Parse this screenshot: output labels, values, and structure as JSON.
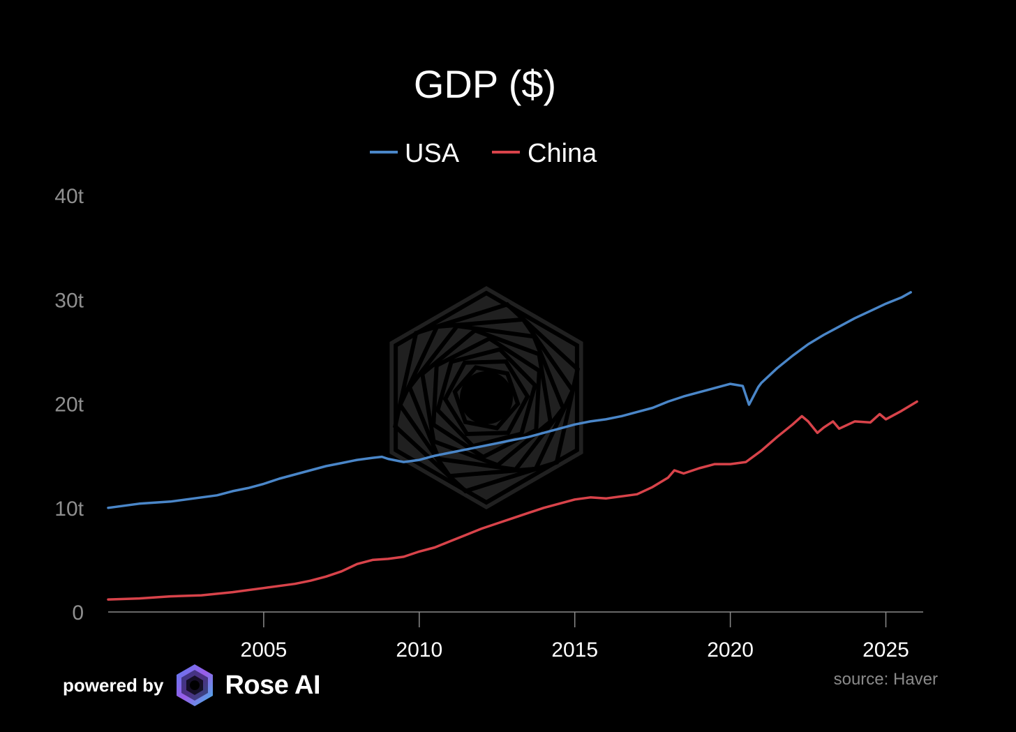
{
  "chart_data": {
    "type": "line",
    "title": "GDP ($)",
    "xlabel": "",
    "ylabel": "",
    "xlim": [
      2000.0,
      2026.2
    ],
    "ylim": [
      0,
      40
    ],
    "y_ticks": [
      0,
      10,
      20,
      30,
      40
    ],
    "y_tick_labels": [
      "0",
      "10t",
      "20t",
      "30t",
      "40t"
    ],
    "x_ticks": [
      2005,
      2010,
      2015,
      2020,
      2025
    ],
    "x_tick_labels": [
      "2005",
      "2010",
      "2015",
      "2020",
      "2025"
    ],
    "grid": false,
    "legend_position": "top-center",
    "series": [
      {
        "name": "USA",
        "color": "#4a86c8",
        "points": [
          [
            2000.0,
            10.0
          ],
          [
            2000.5,
            10.2
          ],
          [
            2001.0,
            10.4
          ],
          [
            2001.5,
            10.5
          ],
          [
            2002.0,
            10.6
          ],
          [
            2002.5,
            10.8
          ],
          [
            2003.0,
            11.0
          ],
          [
            2003.5,
            11.2
          ],
          [
            2004.0,
            11.6
          ],
          [
            2004.5,
            11.9
          ],
          [
            2005.0,
            12.3
          ],
          [
            2005.5,
            12.8
          ],
          [
            2006.0,
            13.2
          ],
          [
            2006.5,
            13.6
          ],
          [
            2007.0,
            14.0
          ],
          [
            2007.5,
            14.3
          ],
          [
            2008.0,
            14.6
          ],
          [
            2008.5,
            14.8
          ],
          [
            2008.8,
            14.9
          ],
          [
            2009.0,
            14.7
          ],
          [
            2009.5,
            14.4
          ],
          [
            2010.0,
            14.6
          ],
          [
            2010.5,
            15.0
          ],
          [
            2011.0,
            15.3
          ],
          [
            2011.5,
            15.6
          ],
          [
            2012.0,
            15.9
          ],
          [
            2012.5,
            16.2
          ],
          [
            2013.0,
            16.5
          ],
          [
            2013.5,
            16.8
          ],
          [
            2014.0,
            17.2
          ],
          [
            2014.5,
            17.6
          ],
          [
            2015.0,
            18.0
          ],
          [
            2015.5,
            18.3
          ],
          [
            2016.0,
            18.5
          ],
          [
            2016.5,
            18.8
          ],
          [
            2017.0,
            19.2
          ],
          [
            2017.5,
            19.6
          ],
          [
            2018.0,
            20.2
          ],
          [
            2018.5,
            20.7
          ],
          [
            2019.0,
            21.1
          ],
          [
            2019.5,
            21.5
          ],
          [
            2020.0,
            21.9
          ],
          [
            2020.4,
            21.7
          ],
          [
            2020.6,
            19.9
          ],
          [
            2020.9,
            21.6
          ],
          [
            2021.0,
            22.0
          ],
          [
            2021.5,
            23.4
          ],
          [
            2022.0,
            24.6
          ],
          [
            2022.5,
            25.7
          ],
          [
            2023.0,
            26.6
          ],
          [
            2023.5,
            27.4
          ],
          [
            2024.0,
            28.2
          ],
          [
            2024.5,
            28.9
          ],
          [
            2025.0,
            29.6
          ],
          [
            2025.5,
            30.2
          ],
          [
            2025.8,
            30.7
          ]
        ]
      },
      {
        "name": "China",
        "color": "#d8434a",
        "points": [
          [
            2000.0,
            1.2
          ],
          [
            2001.0,
            1.3
          ],
          [
            2002.0,
            1.5
          ],
          [
            2003.0,
            1.6
          ],
          [
            2004.0,
            1.9
          ],
          [
            2005.0,
            2.3
          ],
          [
            2006.0,
            2.7
          ],
          [
            2006.5,
            3.0
          ],
          [
            2007.0,
            3.4
          ],
          [
            2007.5,
            3.9
          ],
          [
            2008.0,
            4.6
          ],
          [
            2008.5,
            5.0
          ],
          [
            2009.0,
            5.1
          ],
          [
            2009.5,
            5.3
          ],
          [
            2010.0,
            5.8
          ],
          [
            2010.5,
            6.2
          ],
          [
            2011.0,
            6.8
          ],
          [
            2011.5,
            7.4
          ],
          [
            2012.0,
            8.0
          ],
          [
            2012.5,
            8.5
          ],
          [
            2013.0,
            9.0
          ],
          [
            2013.5,
            9.5
          ],
          [
            2014.0,
            10.0
          ],
          [
            2014.5,
            10.4
          ],
          [
            2015.0,
            10.8
          ],
          [
            2015.5,
            11.0
          ],
          [
            2016.0,
            10.9
          ],
          [
            2016.5,
            11.1
          ],
          [
            2017.0,
            11.3
          ],
          [
            2017.5,
            12.0
          ],
          [
            2018.0,
            12.9
          ],
          [
            2018.2,
            13.6
          ],
          [
            2018.5,
            13.3
          ],
          [
            2019.0,
            13.8
          ],
          [
            2019.5,
            14.2
          ],
          [
            2020.0,
            14.2
          ],
          [
            2020.5,
            14.4
          ],
          [
            2021.0,
            15.5
          ],
          [
            2021.5,
            16.8
          ],
          [
            2022.0,
            18.0
          ],
          [
            2022.3,
            18.8
          ],
          [
            2022.5,
            18.3
          ],
          [
            2022.8,
            17.2
          ],
          [
            2023.0,
            17.7
          ],
          [
            2023.3,
            18.3
          ],
          [
            2023.5,
            17.6
          ],
          [
            2024.0,
            18.3
          ],
          [
            2024.5,
            18.2
          ],
          [
            2024.8,
            19.0
          ],
          [
            2025.0,
            18.5
          ],
          [
            2025.5,
            19.3
          ],
          [
            2026.0,
            20.2
          ]
        ]
      }
    ]
  },
  "footer": {
    "powered_by": "powered by",
    "brand": "Rose AI",
    "source": "source: Haver"
  }
}
